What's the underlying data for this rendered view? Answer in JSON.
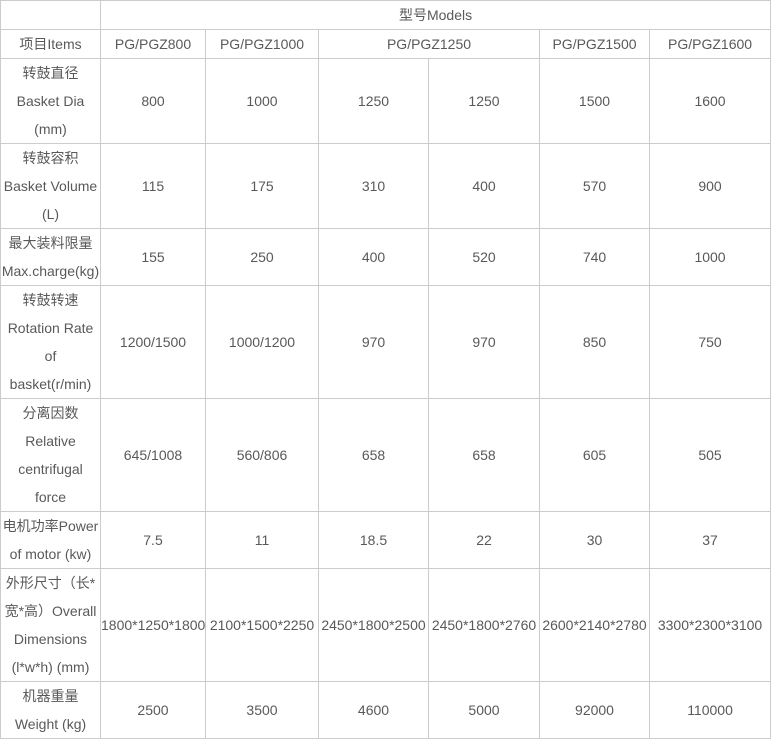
{
  "colors": {
    "border": "#cccccc",
    "text": "#595959",
    "background": "#ffffff"
  },
  "chart_data": {
    "type": "table",
    "models_header": "型号Models",
    "items_header": "项目Items",
    "model_columns": [
      {
        "label": "PG/PGZ800",
        "colspan": "1"
      },
      {
        "label": "PG/PGZ1000",
        "colspan": "1"
      },
      {
        "label": "PG/PGZ1250",
        "colspan": "2"
      },
      {
        "label": "PG/PGZ1500",
        "colspan": "1"
      },
      {
        "label": "PG/PGZ1600",
        "colspan": "1"
      }
    ],
    "rows": [
      {
        "label": "转鼓直径\nBasket Dia\n(mm)",
        "values": [
          "800",
          "1000",
          "1250",
          "1250",
          "1500",
          "1600"
        ]
      },
      {
        "label": "转鼓容积\nBasket Volume\n(L)",
        "values": [
          "115",
          "175",
          "310",
          "400",
          "570",
          "900"
        ]
      },
      {
        "label": "最大装料限量\nMax.charge(kg)",
        "values": [
          "155",
          "250",
          "400",
          "520",
          "740",
          "1000"
        ]
      },
      {
        "label": "转鼓转速\nRotation Rate\nof\nbasket(r/min)",
        "values": [
          "1200/1500",
          "1000/1200",
          "970",
          "970",
          "850",
          "750"
        ]
      },
      {
        "label": "分离因数\nRelative\ncentrifugal\nforce",
        "values": [
          "645/1008",
          "560/806",
          "658",
          "658",
          "605",
          "505"
        ]
      },
      {
        "label": "电机功率Power\nof motor (kw)",
        "values": [
          "7.5",
          "11",
          "18.5",
          "22",
          "30",
          "37"
        ]
      },
      {
        "label": "外形尺寸（长*\n宽*高）Overall\nDimensions\n(l*w*h) (mm)",
        "values": [
          "1800*1250*1800",
          "2100*1500*2250",
          "2450*1800*2500",
          "2450*1800*2760",
          "2600*2140*2780",
          "3300*2300*3100"
        ]
      },
      {
        "label": "机器重量\nWeight (kg)",
        "values": [
          "2500",
          "3500",
          "4600",
          "5000",
          "92000",
          "110000"
        ]
      }
    ]
  }
}
